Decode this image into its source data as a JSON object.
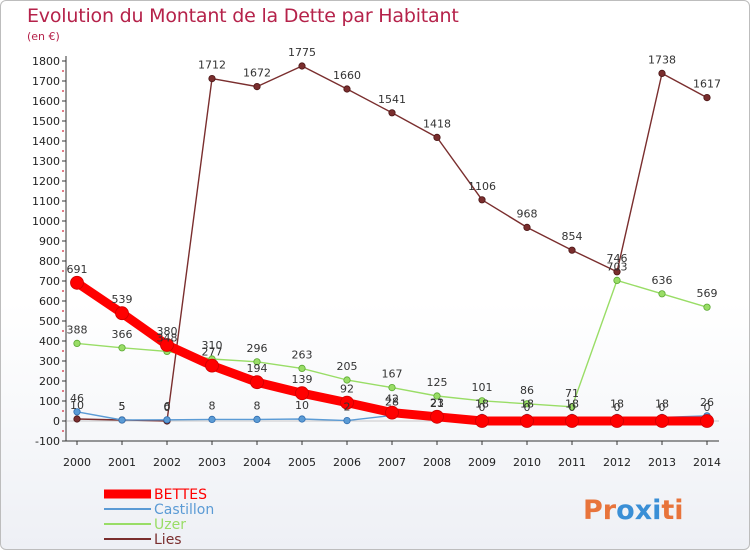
{
  "header": {
    "title": "Evolution du Montant de la Dette par Habitant",
    "subtitle": "(en €)"
  },
  "logo": {
    "text": "Proxiti",
    "letter_colors": [
      "#e8743b",
      "#e8743b",
      "#3a8fd6",
      "#3a8fd6",
      "#3a8fd6",
      "#e8743b",
      "#e8743b"
    ]
  },
  "chart_data": {
    "type": "line",
    "title": "Evolution du Montant de la Dette par Habitant",
    "subtitle": "(en €)",
    "xlabel": "",
    "ylabel": "",
    "x": [
      2000,
      2001,
      2002,
      2003,
      2004,
      2005,
      2006,
      2007,
      2008,
      2009,
      2010,
      2011,
      2012,
      2013,
      2014
    ],
    "ylim": [
      -100,
      1800
    ],
    "yticks": [
      -100,
      0,
      100,
      200,
      300,
      400,
      500,
      600,
      700,
      800,
      900,
      1000,
      1100,
      1200,
      1300,
      1400,
      1500,
      1600,
      1700,
      1800
    ],
    "grid": false,
    "legend_position": "bottom-left",
    "series": [
      {
        "name": "BETTES",
        "color": "#ff0000",
        "values": [
          691,
          539,
          380,
          277,
          194,
          139,
          92,
          42,
          21,
          0,
          0,
          0,
          0,
          0,
          0
        ]
      },
      {
        "name": "Castillon",
        "color": "#5b9bd5",
        "values": [
          46,
          5,
          6,
          8,
          8,
          10,
          2,
          28,
          23,
          18,
          18,
          18,
          18,
          18,
          26
        ]
      },
      {
        "name": "Uzer",
        "color": "#99dd66",
        "values": [
          388,
          366,
          348,
          310,
          296,
          263,
          205,
          167,
          125,
          101,
          86,
          71,
          703,
          636,
          569
        ]
      },
      {
        "name": "Lies",
        "color": "#7a2e2e",
        "values": [
          10,
          5,
          0,
          1712,
          1672,
          1775,
          1660,
          1541,
          1418,
          1106,
          968,
          854,
          746,
          1738,
          1617
        ]
      }
    ]
  }
}
